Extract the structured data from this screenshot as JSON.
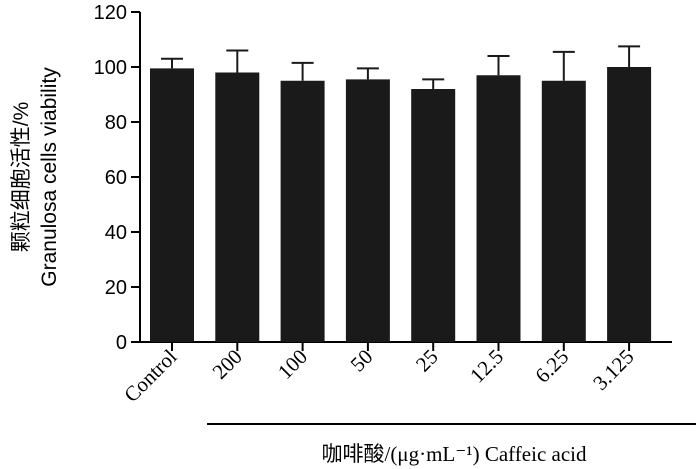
{
  "chart_data": {
    "type": "bar",
    "ylabel_line1": "颗粒细胞活性/%",
    "ylabel_line2": "Granulosa cells viability",
    "xlabel": "咖啡酸/(μg·mL⁻¹) Caffeic acid",
    "ylim": [
      0,
      120
    ],
    "yticks": [
      0,
      20,
      40,
      60,
      80,
      100,
      120
    ],
    "categories": [
      "Control",
      "200",
      "100",
      "50",
      "25",
      "12.5",
      "6.25",
      "3.125"
    ],
    "values": [
      99.5,
      98,
      95,
      95.5,
      92,
      97,
      95,
      100
    ],
    "errors": [
      3.5,
      8,
      6.5,
      4,
      3.5,
      7,
      10.5,
      7.5
    ],
    "bar_color": "#1a1a1a",
    "grid": false,
    "legend": "none"
  }
}
